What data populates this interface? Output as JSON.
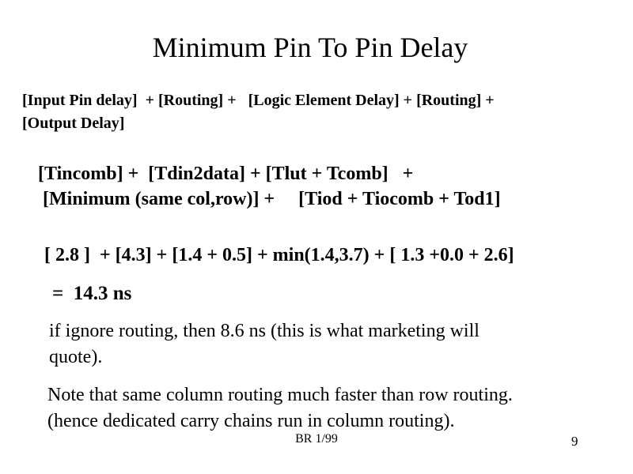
{
  "slide": {
    "title": "Minimum Pin To Pin Delay",
    "formula_symbols": {
      "lines": [
        "[Input Pin delay]  + [Routing] +   [Logic Element Delay] + [Routing] +",
        "[Output Delay]"
      ]
    },
    "formula_terms": {
      "lines": [
        "[Tincomb] +  [Tdin2data] + [Tlut + Tcomb]   +",
        " [Minimum (same col,row)] +     [Tiod + Tiocomb + Tod1]"
      ]
    },
    "formula_values": "[ 2.8 ]  + [4.3] + [1.4 + 0.5] + min(1.4,3.7) + [ 1.3 +0.0 + 2.6]",
    "result": "=  14.3 ns",
    "marketing_note": {
      "lines": [
        "if ignore routing, then 8.6 ns (this is what marketing will",
        "quote)."
      ]
    },
    "routing_note": {
      "lines": [
        "Note that same column routing much faster than row routing.",
        "(hence dedicated carry chains run in column routing)."
      ]
    },
    "footer": "BR 1/99",
    "page_number": "9",
    "colors": {
      "text": "#000000",
      "background": "#ffffff"
    }
  }
}
